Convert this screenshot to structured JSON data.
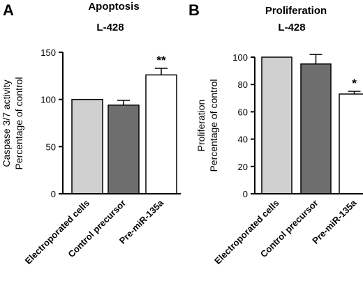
{
  "chart_data": [
    {
      "type": "bar",
      "panel": "A",
      "title": "Apoptosis",
      "subtitle": "L-428",
      "ylabel": [
        "Caspase 3/7 activity",
        "Percentage of control"
      ],
      "ylim": [
        0,
        150
      ],
      "yticks": [
        0,
        50,
        100,
        150
      ],
      "categories": [
        "Electroporated cells",
        "Control precursor",
        "Pre-miR-135a"
      ],
      "values": [
        100,
        94,
        126
      ],
      "errors": [
        0,
        5,
        7
      ],
      "bar_colors": [
        "#d0d0d0",
        "#6e6e6e",
        "#ffffff"
      ],
      "annotations": [
        "",
        "",
        "**"
      ]
    },
    {
      "type": "bar",
      "panel": "B",
      "title": "Proliferation",
      "subtitle": "L-428",
      "ylabel": [
        "Proliferation",
        "Percentage of control"
      ],
      "ylim": [
        0,
        100
      ],
      "yticks": [
        0,
        20,
        40,
        60,
        80,
        100
      ],
      "categories": [
        "Electroporated cells",
        "Control precursor",
        "Pre-miR-135a"
      ],
      "values": [
        100,
        95,
        73
      ],
      "errors": [
        0,
        7,
        2
      ],
      "bar_colors": [
        "#d0d0d0",
        "#6e6e6e",
        "#ffffff"
      ],
      "annotations": [
        "",
        "",
        "*"
      ]
    }
  ]
}
